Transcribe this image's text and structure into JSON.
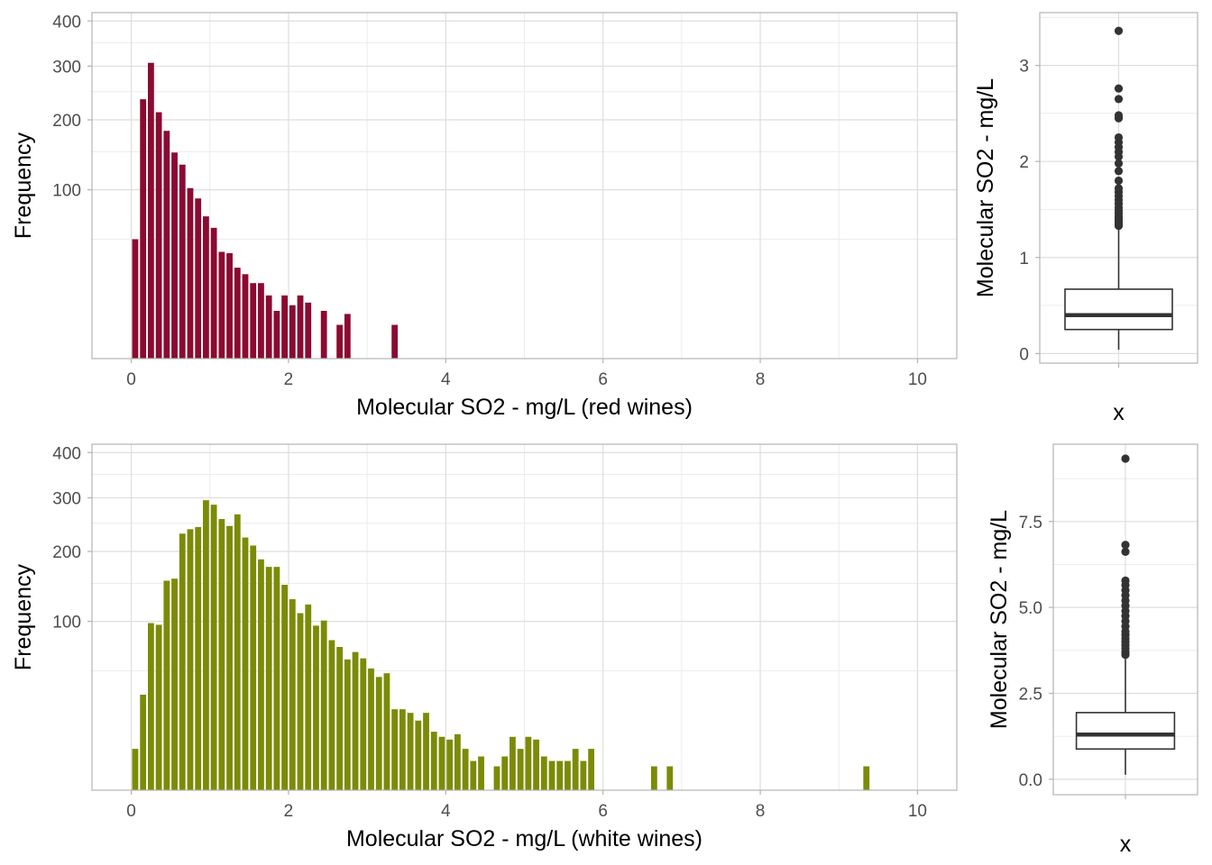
{
  "chart_data": [
    {
      "type": "bar",
      "panel": "histogram-red",
      "xlabel": "Molecular SO2 - mg/L (red wines)",
      "ylabel": "Frequency",
      "y_scale": "sqrt",
      "xlim": [
        -0.5,
        10.5
      ],
      "ylim": [
        0,
        420
      ],
      "x_ticks": [
        "0",
        "2",
        "4",
        "6",
        "8",
        "10"
      ],
      "y_ticks": [
        "100",
        "200",
        "300",
        "400"
      ],
      "grid": true,
      "bin_width": 0.1,
      "color": "#8b0a32",
      "x": [
        0.0,
        0.1,
        0.2,
        0.3,
        0.4,
        0.5,
        0.6,
        0.7,
        0.8,
        0.9,
        1.0,
        1.1,
        1.2,
        1.3,
        1.4,
        1.5,
        1.6,
        1.7,
        1.8,
        1.9,
        2.0,
        2.1,
        2.2,
        2.4,
        2.6,
        2.7,
        3.3
      ],
      "values": [
        50,
        236,
        307,
        213,
        182,
        149,
        132,
        102,
        90,
        71,
        60,
        40,
        39,
        29,
        25,
        20,
        20,
        14,
        8,
        14,
        10,
        14,
        11,
        8,
        4,
        7,
        4
      ]
    },
    {
      "type": "box",
      "panel": "boxplot-red",
      "xlabel": "x",
      "ylabel": "Molecular SO2 - mg/L",
      "ylim": [
        -0.1,
        3.55
      ],
      "y_ticks": [
        0,
        1,
        2,
        3
      ],
      "y_tick_labels": [
        "0",
        "1",
        "2",
        "3"
      ],
      "x_tick_labels": [
        ""
      ],
      "box": {
        "min": 0.04,
        "q1": 0.25,
        "median": 0.4,
        "q3": 0.67,
        "max": 1.3
      },
      "outliers": [
        1.33,
        1.35,
        1.37,
        1.39,
        1.41,
        1.43,
        1.46,
        1.49,
        1.52,
        1.56,
        1.6,
        1.64,
        1.68,
        1.72,
        1.8,
        1.9,
        1.98,
        2.05,
        2.1,
        2.15,
        2.2,
        2.25,
        2.45,
        2.48,
        2.65,
        2.76,
        3.36
      ]
    },
    {
      "type": "bar",
      "panel": "histogram-white",
      "xlabel": "Molecular SO2 - mg/L (white wines)",
      "ylabel": "Frequency",
      "y_scale": "sqrt",
      "xlim": [
        -0.5,
        10.5
      ],
      "ylim": [
        0,
        420
      ],
      "x_ticks": [
        "0",
        "2",
        "4",
        "6",
        "8",
        "10"
      ],
      "y_ticks": [
        "100",
        "200",
        "300",
        "400"
      ],
      "grid": true,
      "bin_width": 0.1,
      "color": "#7b8b07",
      "x": [
        0.0,
        0.1,
        0.2,
        0.3,
        0.4,
        0.5,
        0.6,
        0.7,
        0.8,
        0.9,
        1.0,
        1.1,
        1.2,
        1.3,
        1.4,
        1.5,
        1.6,
        1.7,
        1.8,
        1.9,
        2.0,
        2.1,
        2.2,
        2.3,
        2.4,
        2.5,
        2.6,
        2.7,
        2.8,
        2.9,
        3.0,
        3.1,
        3.2,
        3.3,
        3.4,
        3.5,
        3.6,
        3.7,
        3.8,
        3.9,
        4.0,
        4.1,
        4.2,
        4.3,
        4.4,
        4.6,
        4.7,
        4.8,
        4.9,
        5.0,
        5.1,
        5.2,
        5.3,
        5.4,
        5.5,
        5.6,
        5.7,
        5.8,
        6.6,
        6.8,
        9.3
      ],
      "values": [
        6,
        32,
        98,
        96,
        154,
        157,
        231,
        239,
        243,
        295,
        286,
        258,
        245,
        267,
        224,
        210,
        187,
        175,
        175,
        148,
        128,
        110,
        121,
        95,
        101,
        79,
        72,
        60,
        67,
        61,
        52,
        45,
        48,
        23,
        23,
        21,
        17,
        21,
        12,
        10,
        9,
        11,
        6,
        3,
        4,
        2,
        4,
        10,
        6,
        10,
        9,
        4,
        3,
        3,
        3,
        6,
        3,
        6,
        2,
        2,
        2
      ]
    },
    {
      "type": "box",
      "panel": "boxplot-white",
      "xlabel": "x",
      "ylabel": "Molecular SO2 - mg/L",
      "ylim": [
        -0.45,
        9.75
      ],
      "y_ticks": [
        0,
        2.5,
        5,
        7.5
      ],
      "y_tick_labels": [
        "0.0",
        "2.5",
        "5.0",
        "7.5"
      ],
      "x_tick_labels": [
        ""
      ],
      "box": {
        "min": 0.13,
        "q1": 0.88,
        "median": 1.3,
        "q3": 1.94,
        "max": 3.5
      },
      "outliers": [
        3.62,
        3.7,
        3.8,
        3.9,
        4.0,
        4.1,
        4.2,
        4.3,
        4.45,
        4.6,
        4.75,
        4.9,
        5.05,
        5.2,
        5.35,
        5.5,
        5.65,
        5.78,
        6.62,
        6.82,
        9.33
      ]
    }
  ]
}
